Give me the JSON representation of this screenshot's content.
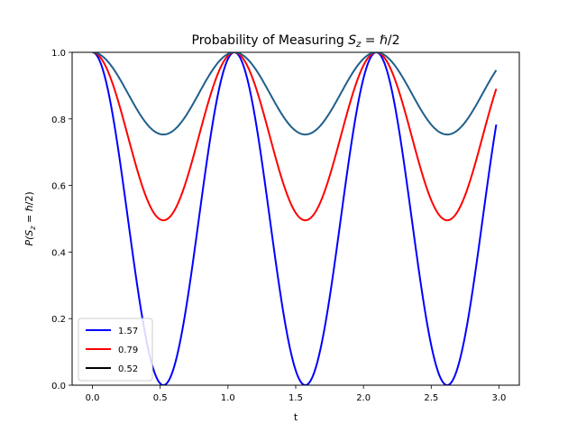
{
  "chart_data": {
    "type": "line",
    "title": "Probability of Measuring S_z = ℏ/2",
    "title_parts": {
      "prefix": "Probability of Measuring ",
      "math_S": "S",
      "math_sub": "z",
      "math_rest": " = ℏ/2"
    },
    "xlabel": "t",
    "ylabel_parts": {
      "p": "P(",
      "S": "S",
      "sub": "z",
      "rest": " = ℏ/2)"
    },
    "xlim": [
      -0.15,
      3.15
    ],
    "ylim": [
      0,
      1.0
    ],
    "xticks": [
      0.0,
      0.5,
      1.0,
      1.5,
      2.0,
      2.5,
      3.0
    ],
    "xtick_labels": [
      "0.0",
      "0.5",
      "1.0",
      "1.5",
      "2.0",
      "2.5",
      "3.0"
    ],
    "yticks": [
      0.0,
      0.2,
      0.4,
      0.6,
      0.8,
      1.0
    ],
    "ytick_labels": [
      "0.0",
      "0.2",
      "0.4",
      "0.6",
      "0.8",
      "1.0"
    ],
    "x_range": [
      0,
      2.98
    ],
    "function": "P(t) = 1 - sin(theta)^2 * sin(3t)^2",
    "omega": 3.0,
    "series": [
      {
        "name": "1.57",
        "theta": 1.57,
        "color": "#0000ff"
      },
      {
        "name": "0.79",
        "theta": 0.79,
        "color": "#ff0000"
      },
      {
        "name": "0.52",
        "theta": 0.52,
        "color": "#000000",
        "plotted_color": "#1f5f8b"
      }
    ],
    "grid": false,
    "legend_position": "lower-left"
  }
}
